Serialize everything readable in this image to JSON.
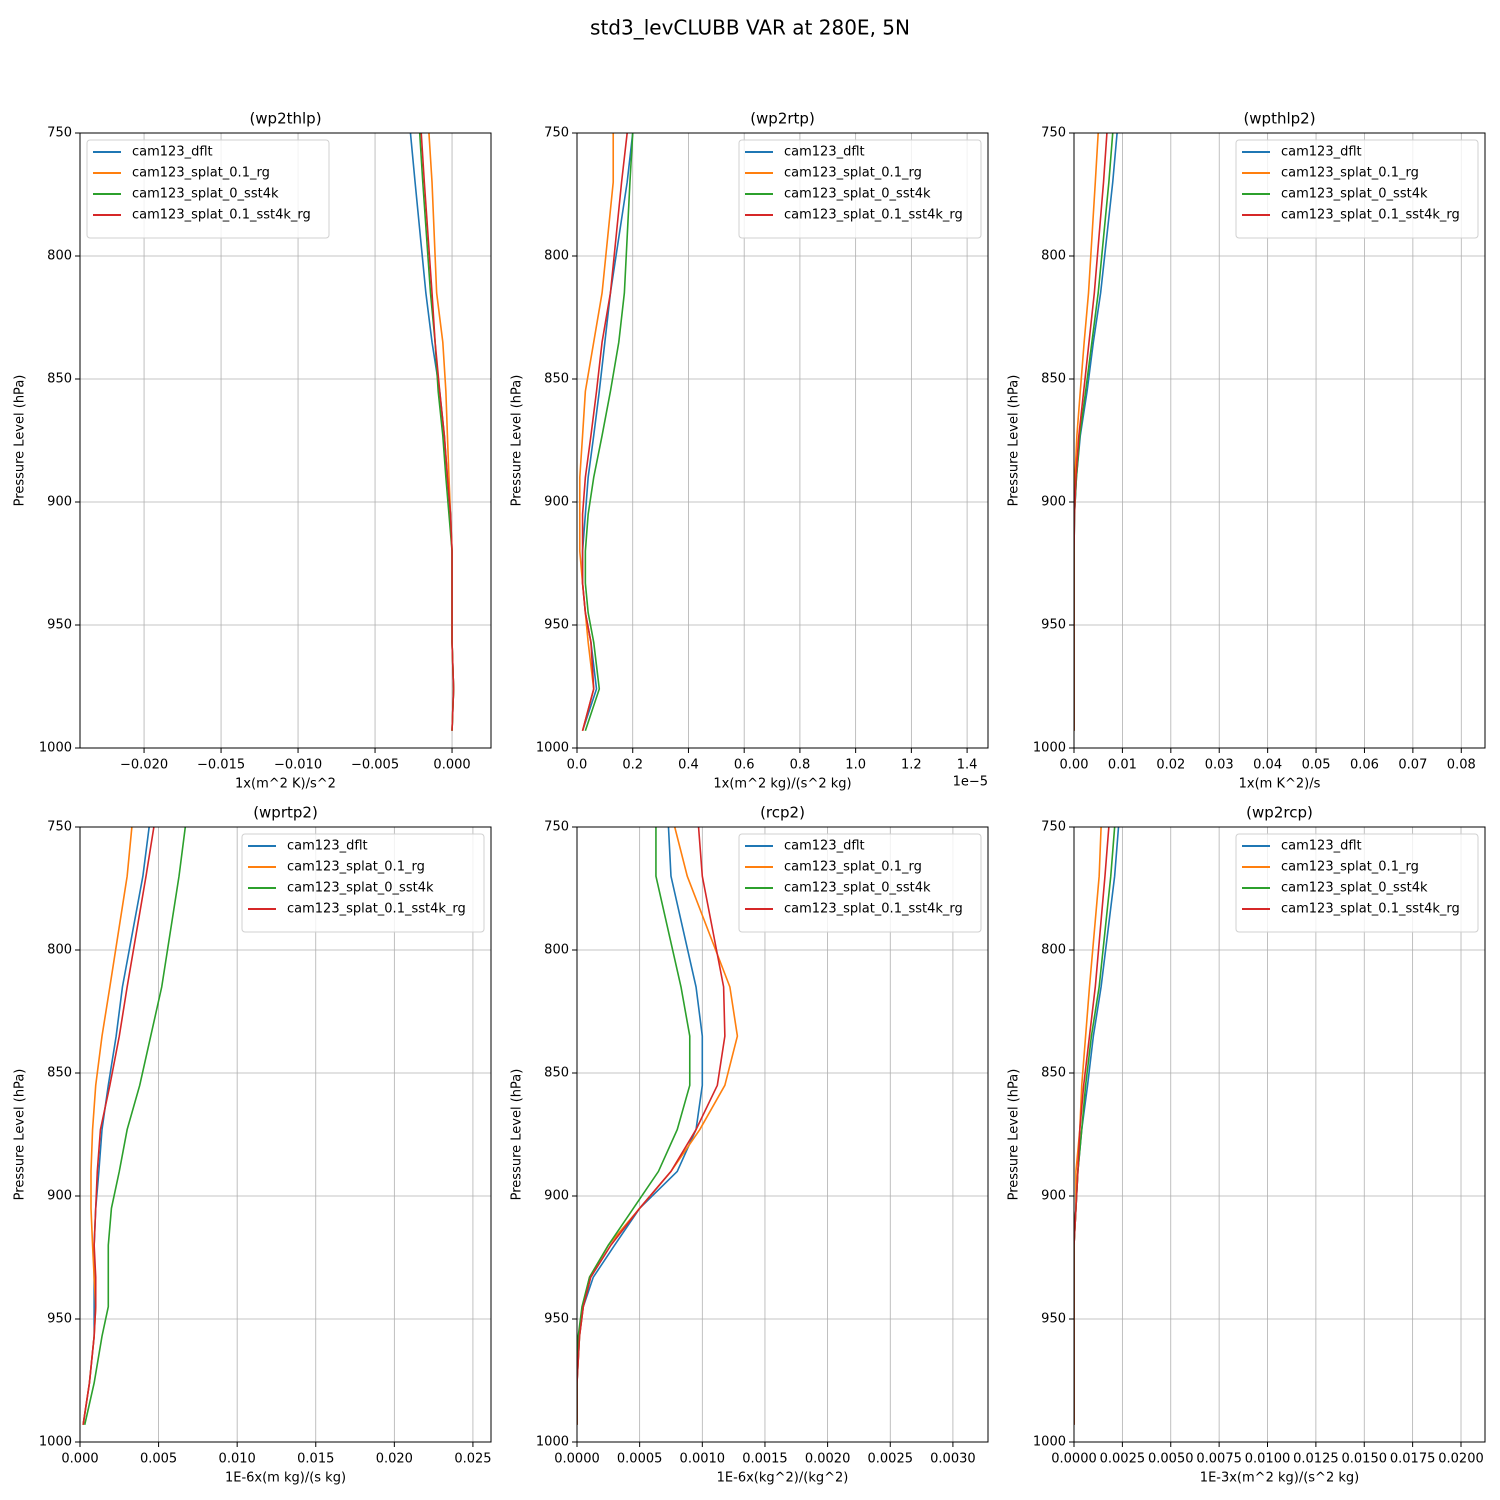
{
  "title": "std3_levCLUBB VAR at 280E, 5N",
  "chart_data": [
    {
      "type": "line",
      "title": "(wp2thlp)",
      "xlabel": "1x(m^2 K)/s^2",
      "ylabel": "Pressure Level (hPa)",
      "legend": "upper left",
      "grid": true,
      "xlim": [
        -0.02416,
        0.00253
      ],
      "xticks": [
        {
          "value": -0.02,
          "label": "−0.020"
        },
        {
          "value": -0.015,
          "label": "−0.015"
        },
        {
          "value": -0.01,
          "label": "−0.010"
        },
        {
          "value": -0.005,
          "label": "−0.005"
        },
        {
          "value": 0,
          "label": "0.000"
        }
      ],
      "ylim": [
        1000,
        750
      ],
      "yticks": [
        750,
        800,
        850,
        900,
        950,
        1000
      ],
      "y": [
        750,
        770,
        815,
        835,
        855,
        873,
        890,
        905,
        920,
        933,
        945,
        957,
        976,
        993
      ],
      "series": [
        {
          "name": "cam123_dflt",
          "color": "#1f77b4",
          "values": [
            -0.0027,
            -0.0024,
            -0.0017,
            -0.0013,
            -0.0008,
            -0.0005,
            -0.0003,
            -0.0001,
            0,
            0,
            0,
            0,
            0.0001,
            0
          ]
        },
        {
          "name": "cam123_splat_0.1_rg",
          "color": "#ff7f0e",
          "values": [
            -0.0015,
            -0.0013,
            -0.001,
            -0.0006,
            -0.0004,
            -0.0003,
            -0.0002,
            -0.0001,
            0,
            0,
            0,
            0,
            0.0001,
            0
          ]
        },
        {
          "name": "cam123_splat_0_sst4k",
          "color": "#2ca02c",
          "values": [
            -0.0021,
            -0.0019,
            -0.0014,
            -0.0011,
            -0.0009,
            -0.0006,
            -0.0004,
            -0.0002,
            0,
            0,
            0,
            0,
            0.0001,
            0
          ]
        },
        {
          "name": "cam123_splat_0.1_sst4k_rg",
          "color": "#d62728",
          "values": [
            -0.002,
            -0.0018,
            -0.0013,
            -0.0011,
            -0.0008,
            -0.0005,
            -0.0003,
            -0.0001,
            0,
            0,
            0,
            0,
            0.0001,
            0
          ]
        }
      ]
    },
    {
      "type": "line",
      "title": "(wp2rtp)",
      "xlabel": "1x(m^2 kg)/(s^2 kg)",
      "x_offset_text": "1e−5",
      "ylabel": "Pressure Level (hPa)",
      "legend": "upper right",
      "grid": true,
      "xlim": [
        0,
        1.475e-05
      ],
      "xticks": [
        {
          "value": 0,
          "label": "0.0"
        },
        {
          "value": 2e-06,
          "label": "0.2"
        },
        {
          "value": 4e-06,
          "label": "0.4"
        },
        {
          "value": 6e-06,
          "label": "0.6"
        },
        {
          "value": 8e-06,
          "label": "0.8"
        },
        {
          "value": 1e-05,
          "label": "1.0"
        },
        {
          "value": 1.2e-05,
          "label": "1.2"
        },
        {
          "value": 1.4e-05,
          "label": "1.4"
        }
      ],
      "ylim": [
        1000,
        750
      ],
      "yticks": [
        750,
        800,
        850,
        900,
        950,
        1000
      ],
      "y": [
        750,
        770,
        815,
        835,
        855,
        873,
        890,
        905,
        920,
        933,
        945,
        957,
        976,
        993
      ],
      "series": [
        {
          "name": "cam123_dflt",
          "color": "#1f77b4",
          "values": [
            2e-06,
            1.8e-06,
            1.2e-06,
            1e-06,
            8e-07,
            6e-07,
            4e-07,
            3e-07,
            2e-07,
            2e-07,
            3e-07,
            5e-07,
            7e-07,
            2e-07
          ]
        },
        {
          "name": "cam123_splat_0.1_rg",
          "color": "#ff7f0e",
          "values": [
            1.3e-06,
            1.3e-06,
            9e-07,
            6e-07,
            3e-07,
            2e-07,
            1e-07,
            1e-07,
            1e-07,
            2e-07,
            3e-07,
            4e-07,
            6e-07,
            2e-07
          ]
        },
        {
          "name": "cam123_splat_0_sst4k",
          "color": "#2ca02c",
          "values": [
            2e-06,
            1.9e-06,
            1.7e-06,
            1.5e-06,
            1.2e-06,
            9e-07,
            6e-07,
            4e-07,
            3e-07,
            3e-07,
            4e-07,
            6e-07,
            8e-07,
            3e-07
          ]
        },
        {
          "name": "cam123_splat_0.1_sst4k_rg",
          "color": "#d62728",
          "values": [
            1.8e-06,
            1.6e-06,
            1.2e-06,
            9e-07,
            7e-07,
            5e-07,
            3e-07,
            2e-07,
            2e-07,
            2e-07,
            3e-07,
            5e-07,
            6e-07,
            2e-07
          ]
        }
      ]
    },
    {
      "type": "line",
      "title": "(wpthlp2)",
      "xlabel": "1x(m K^2)/s",
      "ylabel": "Pressure Level (hPa)",
      "legend": "upper right",
      "grid": true,
      "xlim": [
        0,
        0.0849
      ],
      "xticks": [
        {
          "value": 0,
          "label": "0.00"
        },
        {
          "value": 0.01,
          "label": "0.01"
        },
        {
          "value": 0.02,
          "label": "0.02"
        },
        {
          "value": 0.03,
          "label": "0.03"
        },
        {
          "value": 0.04,
          "label": "0.04"
        },
        {
          "value": 0.05,
          "label": "0.05"
        },
        {
          "value": 0.06,
          "label": "0.06"
        },
        {
          "value": 0.07,
          "label": "0.07"
        },
        {
          "value": 0.08,
          "label": "0.08"
        }
      ],
      "ylim": [
        1000,
        750
      ],
      "yticks": [
        750,
        800,
        850,
        900,
        950,
        1000
      ],
      "y": [
        750,
        770,
        815,
        835,
        855,
        873,
        890,
        905,
        920,
        933,
        945,
        957,
        976,
        993
      ],
      "series": [
        {
          "name": "cam123_dflt",
          "color": "#1f77b4",
          "values": [
            0.0089,
            0.008,
            0.0055,
            0.004,
            0.0027,
            0.0013,
            0.0005,
            0.0001,
            0,
            0,
            0,
            0,
            0,
            0
          ]
        },
        {
          "name": "cam123_splat_0.1_rg",
          "color": "#ff7f0e",
          "values": [
            0.005,
            0.0044,
            0.003,
            0.0021,
            0.0013,
            0.0006,
            0.0002,
            0,
            0,
            0,
            0,
            0,
            0,
            0
          ]
        },
        {
          "name": "cam123_splat_0_sst4k",
          "color": "#2ca02c",
          "values": [
            0.008,
            0.0072,
            0.005,
            0.0037,
            0.0024,
            0.0012,
            0.0005,
            0.0001,
            0,
            0,
            0,
            0,
            0,
            0
          ]
        },
        {
          "name": "cam123_splat_0.1_sst4k_rg",
          "color": "#d62728",
          "values": [
            0.0068,
            0.0061,
            0.0042,
            0.0031,
            0.002,
            0.001,
            0.0004,
            0.0001,
            0,
            0,
            0,
            0,
            0,
            0
          ]
        }
      ]
    },
    {
      "type": "line",
      "title": "(wprtp2)",
      "xlabel": "1E-6x(m kg)/(s kg)",
      "ylabel": "Pressure Level (hPa)",
      "legend": "upper right",
      "grid": true,
      "xlim": [
        0,
        0.02615
      ],
      "xticks": [
        {
          "value": 0,
          "label": "0.000"
        },
        {
          "value": 0.005,
          "label": "0.005"
        },
        {
          "value": 0.01,
          "label": "0.010"
        },
        {
          "value": 0.015,
          "label": "0.015"
        },
        {
          "value": 0.02,
          "label": "0.020"
        },
        {
          "value": 0.025,
          "label": "0.025"
        }
      ],
      "ylim": [
        1000,
        750
      ],
      "yticks": [
        750,
        800,
        850,
        900,
        950,
        1000
      ],
      "y": [
        750,
        770,
        815,
        835,
        855,
        873,
        890,
        905,
        920,
        933,
        945,
        957,
        976,
        993
      ],
      "series": [
        {
          "name": "cam123_dflt",
          "color": "#1f77b4",
          "values": [
            0.0044,
            0.004,
            0.0027,
            0.0023,
            0.0018,
            0.0014,
            0.0012,
            0.001,
            0.0009,
            0.0009,
            0.0009,
            0.0009,
            0.0006,
            0.0002
          ]
        },
        {
          "name": "cam123_splat_0.1_rg",
          "color": "#ff7f0e",
          "values": [
            0.0033,
            0.003,
            0.0019,
            0.0014,
            0.001,
            0.0008,
            0.0007,
            0.0007,
            0.0008,
            0.0009,
            0.001,
            0.0009,
            0.0006,
            0.0002
          ]
        },
        {
          "name": "cam123_splat_0_sst4k",
          "color": "#2ca02c",
          "values": [
            0.0067,
            0.0063,
            0.0052,
            0.0045,
            0.0038,
            0.003,
            0.0025,
            0.002,
            0.0018,
            0.0018,
            0.0018,
            0.0014,
            0.0009,
            0.0003
          ]
        },
        {
          "name": "cam123_splat_0.1_sst4k_rg",
          "color": "#d62728",
          "values": [
            0.0047,
            0.0042,
            0.003,
            0.0025,
            0.0019,
            0.0013,
            0.0011,
            0.001,
            0.0009,
            0.001,
            0.001,
            0.0009,
            0.0006,
            0.0002
          ]
        }
      ]
    },
    {
      "type": "line",
      "title": "(rcp2)",
      "xlabel": "1E-6x(kg^2)/(kg^2)",
      "ylabel": "Pressure Level (hPa)",
      "legend": "upper right",
      "grid": true,
      "xlim": [
        0,
        0.00328
      ],
      "xticks": [
        {
          "value": 0,
          "label": "0.0000"
        },
        {
          "value": 0.0005,
          "label": "0.0005"
        },
        {
          "value": 0.001,
          "label": "0.0010"
        },
        {
          "value": 0.0015,
          "label": "0.0015"
        },
        {
          "value": 0.002,
          "label": "0.0020"
        },
        {
          "value": 0.0025,
          "label": "0.0025"
        },
        {
          "value": 0.003,
          "label": "0.0030"
        }
      ],
      "ylim": [
        1000,
        750
      ],
      "yticks": [
        750,
        800,
        850,
        900,
        950,
        1000
      ],
      "y": [
        750,
        770,
        815,
        835,
        855,
        873,
        890,
        905,
        920,
        933,
        945,
        957,
        976,
        993
      ],
      "series": [
        {
          "name": "cam123_dflt",
          "color": "#1f77b4",
          "values": [
            0.00073,
            0.00075,
            0.00095,
            0.001,
            0.001,
            0.00095,
            0.0008,
            0.0005,
            0.0003,
            0.00013,
            5e-05,
            2e-05,
            0,
            0
          ]
        },
        {
          "name": "cam123_splat_0.1_rg",
          "color": "#ff7f0e",
          "values": [
            0.00078,
            0.00088,
            0.00122,
            0.00128,
            0.00118,
            0.00098,
            0.00075,
            0.0005,
            0.00025,
            0.0001,
            5e-05,
            2e-05,
            0,
            0
          ]
        },
        {
          "name": "cam123_splat_0_sst4k",
          "color": "#2ca02c",
          "values": [
            0.00063,
            0.00063,
            0.00083,
            0.0009,
            0.0009,
            0.0008,
            0.00065,
            0.00045,
            0.00025,
            0.0001,
            4e-05,
            1e-05,
            0,
            0
          ]
        },
        {
          "name": "cam123_splat_0.1_sst4k_rg",
          "color": "#d62728",
          "values": [
            0.00097,
            0.001,
            0.00117,
            0.00118,
            0.00112,
            0.00095,
            0.00075,
            0.0005,
            0.00027,
            0.00011,
            5e-05,
            2e-05,
            0,
            0
          ]
        }
      ]
    },
    {
      "type": "line",
      "title": "(wp2rcp)",
      "xlabel": "1E-3x(m^2 kg)/(s^2 kg)",
      "ylabel": "Pressure Level (hPa)",
      "legend": "upper right",
      "grid": true,
      "xlim": [
        0,
        0.02124
      ],
      "xticks": [
        {
          "value": 0,
          "label": "0.0000"
        },
        {
          "value": 0.0025,
          "label": "0.0025"
        },
        {
          "value": 0.005,
          "label": "0.0050"
        },
        {
          "value": 0.0075,
          "label": "0.0075"
        },
        {
          "value": 0.01,
          "label": "0.0100"
        },
        {
          "value": 0.0125,
          "label": "0.0125"
        },
        {
          "value": 0.015,
          "label": "0.0150"
        },
        {
          "value": 0.0175,
          "label": "0.0175"
        },
        {
          "value": 0.02,
          "label": "0.0200"
        }
      ],
      "ylim": [
        1000,
        750
      ],
      "yticks": [
        750,
        800,
        850,
        900,
        950,
        1000
      ],
      "y": [
        750,
        770,
        815,
        835,
        855,
        873,
        890,
        905,
        920,
        933,
        945,
        957,
        976,
        993
      ],
      "series": [
        {
          "name": "cam123_dflt",
          "color": "#1f77b4",
          "values": [
            0.0023,
            0.0021,
            0.0014,
            0.001,
            0.0007,
            0.0004,
            0.0002,
            0.0001,
            0,
            0,
            0,
            0,
            0,
            0
          ]
        },
        {
          "name": "cam123_splat_0.1_rg",
          "color": "#ff7f0e",
          "values": [
            0.0014,
            0.0013,
            0.0008,
            0.0006,
            0.0004,
            0.0003,
            0.0001,
            0.0001,
            0,
            0,
            0,
            0,
            0,
            0
          ]
        },
        {
          "name": "cam123_splat_0_sst4k",
          "color": "#2ca02c",
          "values": [
            0.0021,
            0.0019,
            0.0013,
            0.0009,
            0.0006,
            0.0004,
            0.0002,
            0.0001,
            0,
            0,
            0,
            0,
            0,
            0
          ]
        },
        {
          "name": "cam123_splat_0.1_sst4k_rg",
          "color": "#d62728",
          "values": [
            0.0018,
            0.0016,
            0.0011,
            0.0008,
            0.0005,
            0.0003,
            0.0002,
            0.0001,
            0,
            0,
            0,
            0,
            0,
            0
          ]
        }
      ]
    }
  ]
}
